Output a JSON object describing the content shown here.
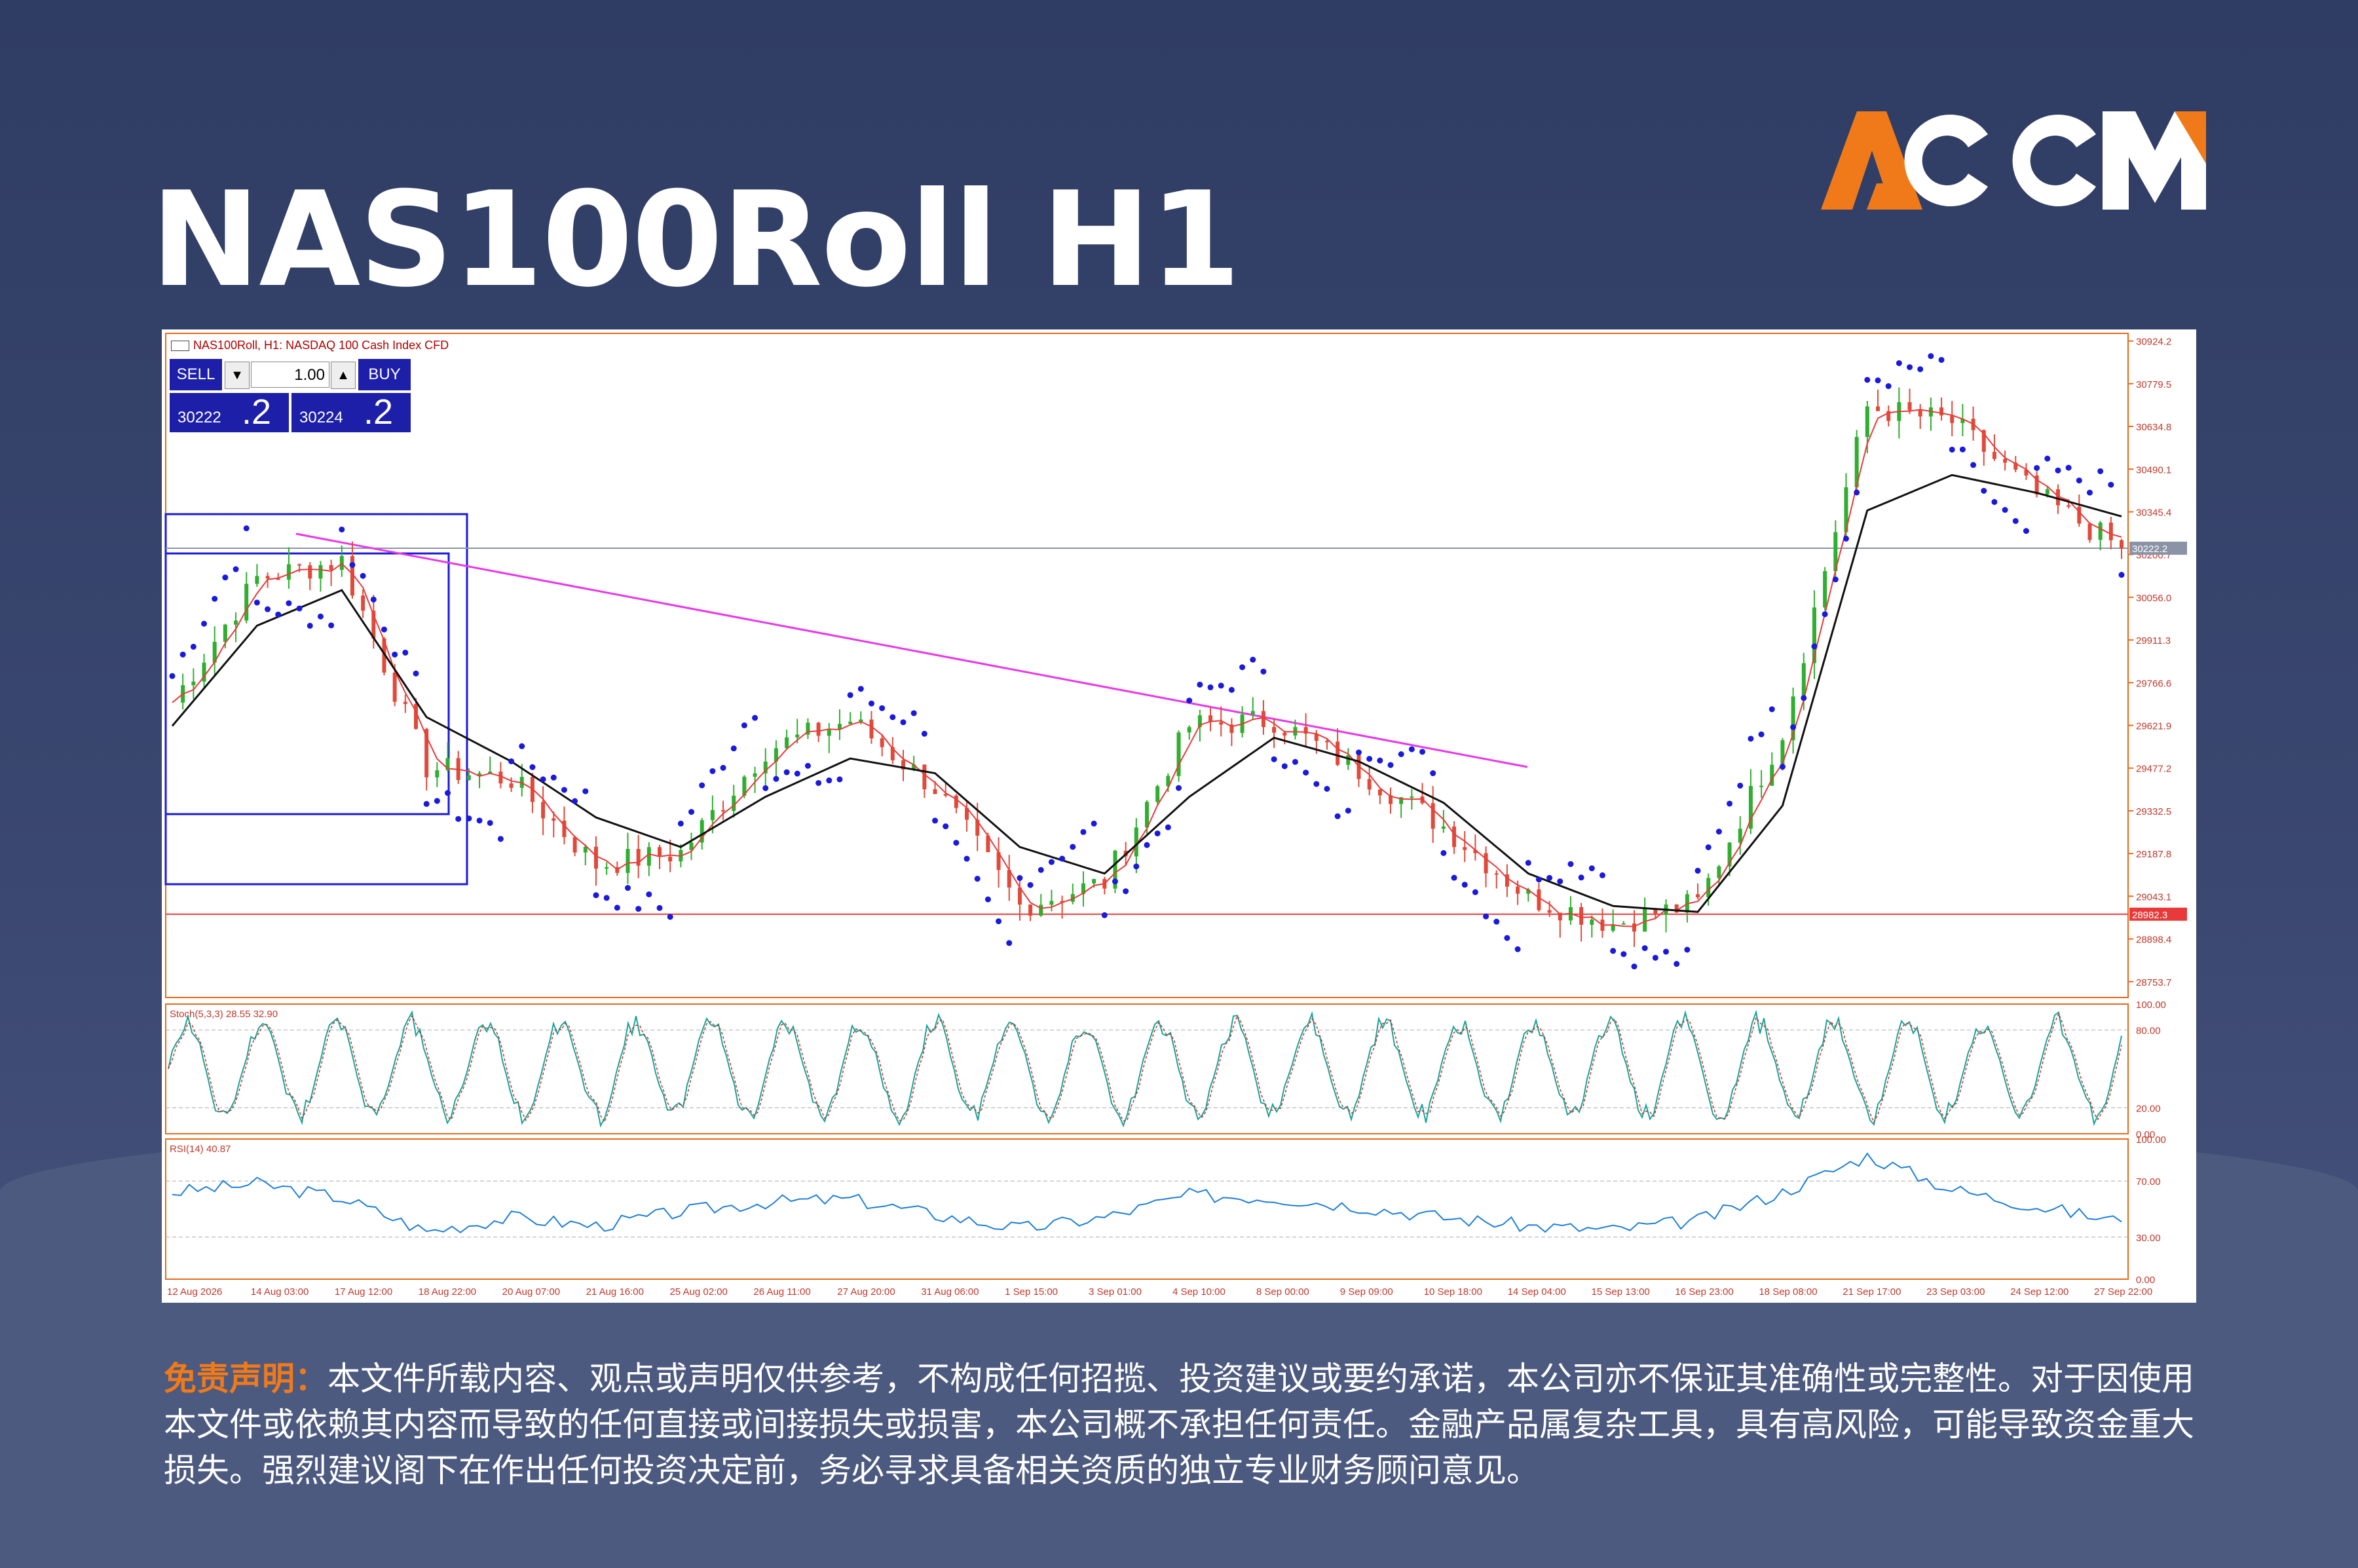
{
  "page": {
    "title": "NAS100Roll H1"
  },
  "brand": {
    "logo_text": "ACCM",
    "accent": "#f07a1a"
  },
  "chart_window": {
    "header": "NAS100Roll, H1: NASDAQ 100 Cash Index CFD",
    "trade_panel": {
      "sell_label": "SELL",
      "buy_label": "BUY",
      "lot_value": "1.00",
      "bid_prefix": "30222",
      "bid_suffix": ".2",
      "ask_prefix": "30224",
      "ask_suffix": ".2"
    },
    "current_price_label": "30222.2",
    "support_price_label": "28982.3",
    "price_axis_ticks": [
      "30924.2",
      "30779.5",
      "30634.8",
      "30490.1",
      "30345.4",
      "30200.7",
      "30056.0",
      "29911.3",
      "29766.6",
      "29621.9",
      "29477.2",
      "29332.5",
      "29187.8",
      "29043.1",
      "28898.4",
      "28753.7"
    ],
    "time_axis_ticks": [
      "12 Aug 2026",
      "14 Aug 03:00",
      "17 Aug 12:00",
      "18 Aug 22:00",
      "20 Aug 07:00",
      "21 Aug 16:00",
      "25 Aug 02:00",
      "26 Aug 11:00",
      "27 Aug 20:00",
      "31 Aug 06:00",
      "1 Sep 15:00",
      "3 Sep 01:00",
      "4 Sep 10:00",
      "8 Sep 00:00",
      "9 Sep 09:00",
      "10 Sep 18:00",
      "14 Sep 04:00",
      "15 Sep 13:00",
      "16 Sep 23:00",
      "18 Sep 08:00",
      "21 Sep 17:00",
      "23 Sep 03:00",
      "24 Sep 12:00",
      "27 Sep 22:00"
    ],
    "stoch_label": "Stoch(5,3,3) 28.55 32.90",
    "stoch_ticks": [
      "100.00",
      "80.00",
      "20.00",
      "0.00"
    ],
    "rsi_label": "RSI(14) 40.87",
    "rsi_ticks": [
      "100.00",
      "70.00",
      "30.00",
      "0.00"
    ],
    "colors": {
      "trendline": "#e838e8",
      "support_line": "#e83a3a",
      "sma_fast": "#e83a3a",
      "sma_slow": "#111111",
      "sar": "#1a1adc",
      "rsi": "#1e7fd8",
      "stoch_main": "#1aa39a",
      "stoch_signal": "#c0392b"
    }
  },
  "chart_data": {
    "type": "line",
    "symbol": "NAS100Roll",
    "timeframe": "H1",
    "x": [
      "12 Aug 2026",
      "14 Aug 03:00",
      "17 Aug 12:00",
      "18 Aug 22:00",
      "20 Aug 07:00",
      "21 Aug 16:00",
      "25 Aug 02:00",
      "26 Aug 11:00",
      "27 Aug 20:00",
      "31 Aug 06:00",
      "1 Sep 15:00",
      "3 Sep 01:00",
      "4 Sep 10:00",
      "8 Sep 00:00",
      "9 Sep 09:00",
      "10 Sep 18:00",
      "14 Sep 04:00",
      "15 Sep 13:00",
      "16 Sep 23:00",
      "18 Sep 08:00",
      "21 Sep 17:00",
      "23 Sep 03:00",
      "24 Sep 12:00",
      "27 Sep 22:00"
    ],
    "price_close": [
      29700,
      30120,
      30180,
      29480,
      29440,
      29150,
      29190,
      29540,
      29640,
      29410,
      29010,
      29090,
      29620,
      29640,
      29470,
      29280,
      29040,
      28950,
      29020,
      29600,
      30700,
      30650,
      30400,
      30222
    ],
    "sma_slow": [
      29620,
      29960,
      30080,
      29650,
      29500,
      29310,
      29210,
      29380,
      29510,
      29460,
      29210,
      29120,
      29380,
      29580,
      29500,
      29360,
      29120,
      29010,
      28990,
      29350,
      30350,
      30470,
      30410,
      30330
    ],
    "rsi": [
      62,
      68,
      58,
      34,
      44,
      38,
      48,
      55,
      57,
      46,
      36,
      44,
      60,
      58,
      52,
      44,
      38,
      35,
      42,
      62,
      88,
      64,
      52,
      40.87
    ],
    "stoch_last": [
      28.55,
      32.9
    ],
    "rsi_last": 40.87,
    "ylim": [
      28700,
      30950
    ],
    "levels": {
      "current": 30222.2,
      "support": 28982.3
    }
  },
  "disclaimer": {
    "label": "免责声明：",
    "text": "本文件所载内容、观点或声明仅供参考，不构成任何招揽、投资建议或要约承诺，本公司亦不保证其准确性或完整性。对于因使用本文件或依赖其内容而导致的任何直接或间接损失或损害，本公司概不承担任何责任。金融产品属复杂工具，具有高风险，可能导致资金重大损失。强烈建议阁下在作出任何投资决定前，务必寻求具备相关资质的独立专业财务顾问意见。"
  }
}
